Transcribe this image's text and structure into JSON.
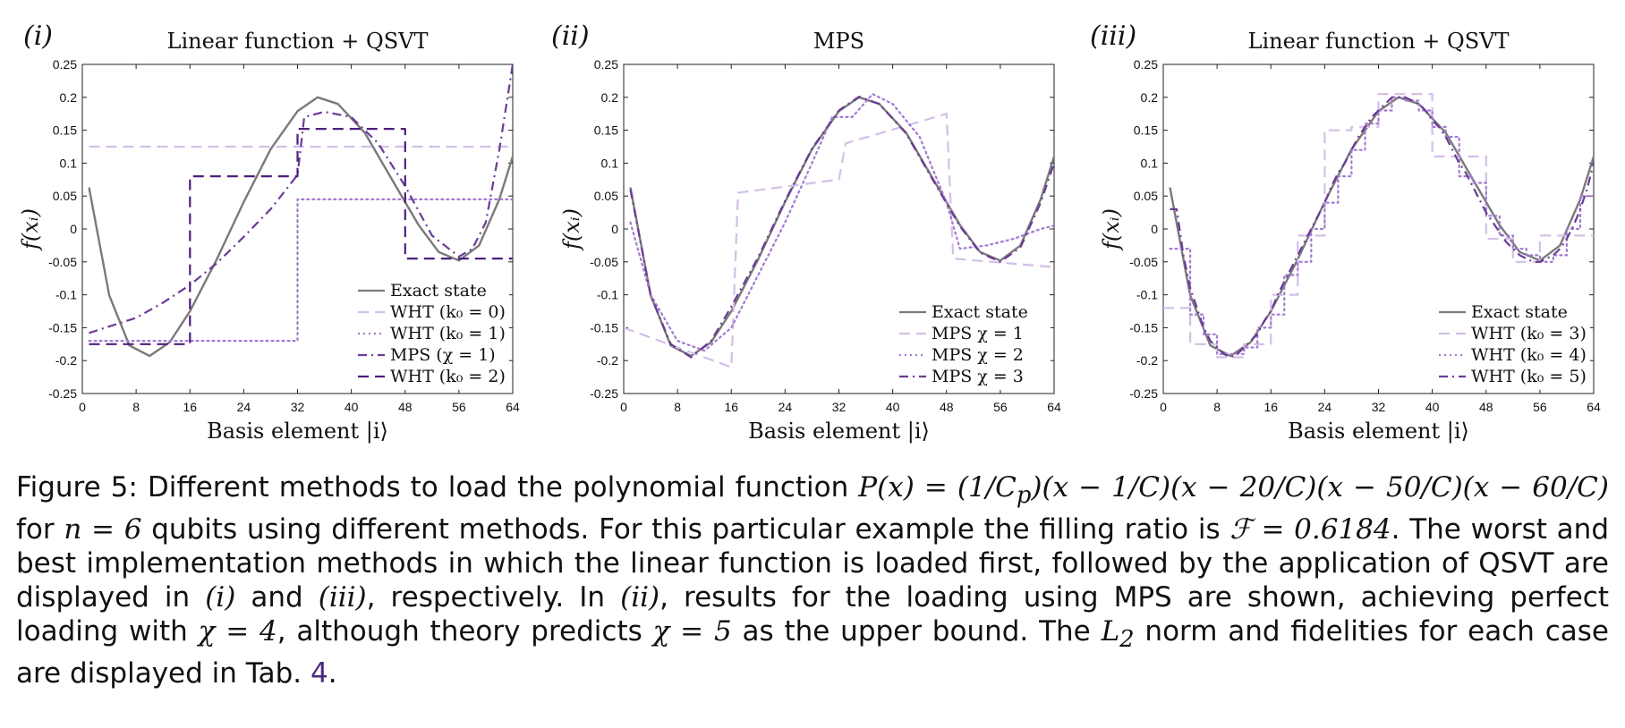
{
  "colors": {
    "exact": "#7a7a7a",
    "light": "#d4bfe8",
    "medium": "#a27ad2",
    "dark": "#6c3a98",
    "darkest": "#4e1f7c"
  },
  "chart_data": [
    {
      "type": "line",
      "panel_label": "(i)",
      "title": "Linear function + QSVT",
      "xlabel": "Basis element |i⟩",
      "ylabel": "f(xᵢ)",
      "xlim": [
        0,
        64
      ],
      "ylim": [
        -0.25,
        0.25
      ],
      "xticks": [
        0,
        8,
        16,
        24,
        32,
        40,
        48,
        56,
        64
      ],
      "yticks": [
        0.25,
        0.2,
        0.15,
        0.1,
        0.05,
        0,
        -0.05,
        -0.1,
        -0.15,
        -0.2,
        -0.25
      ],
      "ytick_labels": [
        "0.25",
        "0.2",
        "0.15",
        "0.1",
        "0.05",
        "0",
        "-0.05",
        "-0.1",
        "-0.15",
        "-0.2",
        "-0.25"
      ],
      "legend_position": "bottom-right",
      "series": [
        {
          "name": "Exact state",
          "style": "solid",
          "color_key": "exact",
          "x": [
            1,
            4,
            7,
            10,
            13,
            16,
            20,
            24,
            28,
            32,
            35,
            38,
            42,
            46,
            50,
            53,
            56,
            59,
            62,
            64
          ],
          "y": [
            0.063,
            -0.101,
            -0.177,
            -0.193,
            -0.172,
            -0.125,
            -0.046,
            0.041,
            0.121,
            0.179,
            0.2,
            0.19,
            0.146,
            0.076,
            0.006,
            -0.035,
            -0.048,
            -0.025,
            0.045,
            0.11
          ]
        },
        {
          "name": "WHT (k₀ = 0)",
          "style": "dash",
          "color_key": "light",
          "x": [
            1,
            64
          ],
          "y": [
            0.125,
            0.125
          ]
        },
        {
          "name": "WHT (k₀ = 1)",
          "style": "dot",
          "color_key": "medium",
          "x": [
            1,
            32,
            32,
            64
          ],
          "y": [
            -0.17,
            -0.17,
            0.045,
            0.045
          ]
        },
        {
          "name": "MPS (χ = 1)",
          "style": "dashdot",
          "color_key": "dark",
          "x": [
            1,
            8,
            12,
            16,
            20,
            24,
            28,
            32,
            33,
            36,
            40,
            44,
            48,
            52,
            56,
            58,
            60,
            62,
            64
          ],
          "y": [
            -0.158,
            -0.135,
            -0.112,
            -0.085,
            -0.052,
            -0.012,
            0.03,
            0.082,
            0.17,
            0.178,
            0.17,
            0.13,
            0.065,
            -0.01,
            -0.042,
            -0.03,
            0.01,
            0.12,
            0.25
          ]
        },
        {
          "name": "WHT (k₀ = 2)",
          "style": "dash",
          "color_key": "darkest",
          "x": [
            1,
            16,
            16,
            32,
            32,
            48,
            48,
            64
          ],
          "y": [
            -0.175,
            -0.175,
            0.08,
            0.08,
            0.152,
            0.152,
            -0.045,
            -0.045
          ]
        }
      ]
    },
    {
      "type": "line",
      "panel_label": "(ii)",
      "title": "MPS",
      "xlabel": "Basis element |i⟩",
      "ylabel": "f(xᵢ)",
      "xlim": [
        0,
        64
      ],
      "ylim": [
        -0.25,
        0.25
      ],
      "xticks": [
        0,
        8,
        16,
        24,
        32,
        40,
        48,
        56,
        64
      ],
      "yticks": [
        0.25,
        0.2,
        0.15,
        0.1,
        0.05,
        0,
        -0.05,
        -0.1,
        -0.15,
        -0.2,
        -0.25
      ],
      "ytick_labels": [
        "0.25",
        "0.2",
        "0.15",
        "0.1",
        "0.05",
        "0",
        "-0.05",
        "-0.1",
        "-0.15",
        "-0.2",
        "-0.25"
      ],
      "legend_position": "bottom-right",
      "series": [
        {
          "name": "Exact state",
          "style": "solid",
          "color_key": "exact",
          "x": [
            1,
            4,
            7,
            10,
            13,
            16,
            20,
            24,
            28,
            32,
            35,
            38,
            42,
            46,
            50,
            53,
            56,
            59,
            62,
            64
          ],
          "y": [
            0.063,
            -0.101,
            -0.177,
            -0.193,
            -0.172,
            -0.125,
            -0.046,
            0.041,
            0.121,
            0.179,
            0.2,
            0.19,
            0.146,
            0.076,
            0.006,
            -0.035,
            -0.048,
            -0.025,
            0.045,
            0.11
          ]
        },
        {
          "name": "MPS χ = 1",
          "style": "dash",
          "color_key": "light",
          "x": [
            0,
            16,
            17,
            32,
            33,
            48,
            49,
            64
          ],
          "y": [
            -0.15,
            -0.21,
            0.055,
            0.075,
            0.13,
            0.175,
            -0.045,
            -0.058
          ]
        },
        {
          "name": "MPS χ = 2",
          "style": "dot",
          "color_key": "medium",
          "x": [
            1,
            4,
            8,
            12,
            16,
            20,
            24,
            28,
            31,
            34,
            37,
            40,
            44,
            48,
            50,
            54,
            58,
            62,
            64
          ],
          "y": [
            0.01,
            -0.1,
            -0.17,
            -0.185,
            -0.15,
            -0.07,
            0.01,
            0.1,
            0.17,
            0.17,
            0.205,
            0.19,
            0.14,
            0.04,
            -0.03,
            -0.025,
            -0.015,
            0.0,
            0.005
          ]
        },
        {
          "name": "MPS χ = 3",
          "style": "dashdot",
          "color_key": "dark",
          "x": [
            1,
            4,
            7,
            10,
            13,
            16,
            20,
            24,
            28,
            32,
            35,
            38,
            42,
            46,
            50,
            53,
            56,
            59,
            62,
            64
          ],
          "y": [
            0.06,
            -0.1,
            -0.175,
            -0.195,
            -0.17,
            -0.118,
            -0.043,
            0.043,
            0.122,
            0.18,
            0.201,
            0.19,
            0.145,
            0.074,
            0.004,
            -0.036,
            -0.05,
            -0.028,
            0.04,
            0.1
          ]
        }
      ]
    },
    {
      "type": "line",
      "panel_label": "(iii)",
      "title": "Linear function + QSVT",
      "xlabel": "Basis element |i⟩",
      "ylabel": "f(xᵢ)",
      "xlim": [
        0,
        64
      ],
      "ylim": [
        -0.25,
        0.25
      ],
      "xticks": [
        0,
        8,
        16,
        24,
        32,
        40,
        48,
        56,
        64
      ],
      "yticks": [
        0.25,
        0.2,
        0.15,
        0.1,
        0.05,
        0,
        -0.05,
        -0.1,
        -0.15,
        -0.2,
        -0.25
      ],
      "ytick_labels": [
        "0.25",
        "0.2",
        "0.15",
        "0.1",
        "0.05",
        "0",
        "-0.05",
        "-0.1",
        "-0.15",
        "-0.2",
        "-0.25"
      ],
      "legend_position": "bottom-right",
      "series": [
        {
          "name": "Exact state",
          "style": "solid",
          "color_key": "exact",
          "x": [
            1,
            4,
            7,
            10,
            13,
            16,
            20,
            24,
            28,
            32,
            35,
            38,
            42,
            46,
            50,
            53,
            56,
            59,
            62,
            64
          ],
          "y": [
            0.063,
            -0.101,
            -0.177,
            -0.193,
            -0.172,
            -0.125,
            -0.046,
            0.041,
            0.121,
            0.179,
            0.2,
            0.19,
            0.146,
            0.076,
            0.006,
            -0.035,
            -0.048,
            -0.025,
            0.045,
            0.11
          ]
        },
        {
          "name": "WHT (k₀ = 3)",
          "style": "dash",
          "color_key": "light",
          "x": [
            0,
            4,
            4,
            8,
            8,
            12,
            12,
            16,
            16,
            20,
            20,
            24,
            24,
            28,
            28,
            32,
            32,
            36,
            36,
            40,
            40,
            44,
            44,
            48,
            48,
            52,
            52,
            56,
            56,
            60,
            60,
            64
          ],
          "y": [
            -0.12,
            -0.12,
            -0.175,
            -0.175,
            -0.195,
            -0.195,
            -0.175,
            -0.175,
            -0.1,
            -0.1,
            -0.01,
            -0.01,
            0.15,
            0.15,
            0.155,
            0.155,
            0.205,
            0.205,
            0.205,
            0.205,
            0.11,
            0.11,
            0.11,
            0.11,
            -0.015,
            -0.015,
            -0.05,
            -0.05,
            -0.01,
            -0.01,
            -0.01,
            -0.01
          ]
        },
        {
          "name": "WHT (k₀ = 4)",
          "style": "dot",
          "color_key": "medium",
          "x": [
            1,
            2,
            2,
            4,
            4,
            6,
            6,
            8,
            8,
            10,
            10,
            12,
            12,
            14,
            14,
            16,
            16,
            18,
            18,
            20,
            20,
            22,
            22,
            24,
            24,
            26,
            26,
            28,
            28,
            30,
            30,
            32,
            32,
            34,
            34,
            36,
            36,
            38,
            38,
            40,
            40,
            42,
            42,
            44,
            44,
            46,
            46,
            48,
            48,
            50,
            50,
            52,
            52,
            54,
            54,
            56,
            56,
            58,
            58,
            60,
            60,
            62,
            62,
            64
          ],
          "y": [
            -0.03,
            -0.03,
            -0.03,
            -0.03,
            -0.13,
            -0.13,
            -0.16,
            -0.16,
            -0.19,
            -0.19,
            -0.19,
            -0.19,
            -0.18,
            -0.18,
            -0.15,
            -0.15,
            -0.13,
            -0.13,
            -0.07,
            -0.07,
            -0.05,
            -0.05,
            0.0,
            0.0,
            0.04,
            0.04,
            0.08,
            0.08,
            0.12,
            0.12,
            0.16,
            0.16,
            0.18,
            0.18,
            0.2,
            0.2,
            0.195,
            0.195,
            0.18,
            0.18,
            0.155,
            0.155,
            0.14,
            0.14,
            0.08,
            0.08,
            0.07,
            0.07,
            0.02,
            0.02,
            -0.01,
            -0.01,
            -0.03,
            -0.03,
            -0.04,
            -0.04,
            -0.05,
            -0.05,
            -0.04,
            -0.04,
            0.0,
            0.0,
            0.05,
            0.05
          ]
        },
        {
          "name": "WHT (k₀ = 5)",
          "style": "dashdot",
          "color_key": "dark",
          "x": [
            1,
            2,
            3,
            4,
            5,
            6,
            7,
            8,
            9,
            10,
            11,
            12,
            13,
            14,
            15,
            16,
            17,
            18,
            19,
            20,
            21,
            22,
            23,
            24,
            25,
            26,
            27,
            28,
            29,
            30,
            31,
            32,
            33,
            34,
            35,
            36,
            37,
            38,
            39,
            40,
            41,
            42,
            43,
            44,
            45,
            46,
            47,
            48,
            49,
            50,
            51,
            52,
            53,
            54,
            55,
            56,
            57,
            58,
            59,
            60,
            61,
            62,
            63,
            64
          ],
          "y": [
            0.03,
            0.03,
            -0.04,
            -0.09,
            -0.12,
            -0.15,
            -0.17,
            -0.18,
            -0.19,
            -0.195,
            -0.19,
            -0.18,
            -0.17,
            -0.16,
            -0.14,
            -0.125,
            -0.1,
            -0.08,
            -0.06,
            -0.04,
            -0.02,
            0.0,
            0.02,
            0.04,
            0.065,
            0.085,
            0.1,
            0.12,
            0.14,
            0.155,
            0.17,
            0.18,
            0.19,
            0.2,
            0.2,
            0.2,
            0.195,
            0.19,
            0.18,
            0.165,
            0.155,
            0.14,
            0.12,
            0.1,
            0.085,
            0.065,
            0.045,
            0.025,
            0.01,
            -0.005,
            -0.02,
            -0.03,
            -0.04,
            -0.045,
            -0.05,
            -0.05,
            -0.045,
            -0.04,
            -0.03,
            -0.015,
            0.005,
            0.03,
            0.06,
            0.1
          ]
        }
      ]
    }
  ],
  "caption": {
    "seg1": "Figure 5: Different methods to load the polynomial function ",
    "math1": "P(x) = (1/C",
    "math1_sub": "p",
    "math1b": ")(x − 1/C)(x − 20/C)(x − 50/C)(x − 60/C)",
    "seg2": " for ",
    "math2": "n = 6",
    "seg3": " qubits using different methods. For this particular example the filling ratio is ",
    "math3": "ℱ = 0.6184",
    "seg4": ". The worst and best implementation methods in which the linear function is loaded first, followed by the application of QSVT are displayed in ",
    "math4": "(i)",
    "seg5": " and ",
    "math5": "(iii)",
    "seg6": ", respectively. In ",
    "math6": "(ii)",
    "seg7": ", results for the loading using MPS are shown, achieving perfect loading with ",
    "math7": "χ = 4",
    "seg8": ", although theory predicts ",
    "math8": "χ = 5",
    "seg9": " as the upper bound. The ",
    "math9": "L",
    "math9_sub": "2",
    "seg10": " norm and fidelities for each case are displayed in Tab. ",
    "tabref": "4",
    "seg11": "."
  }
}
